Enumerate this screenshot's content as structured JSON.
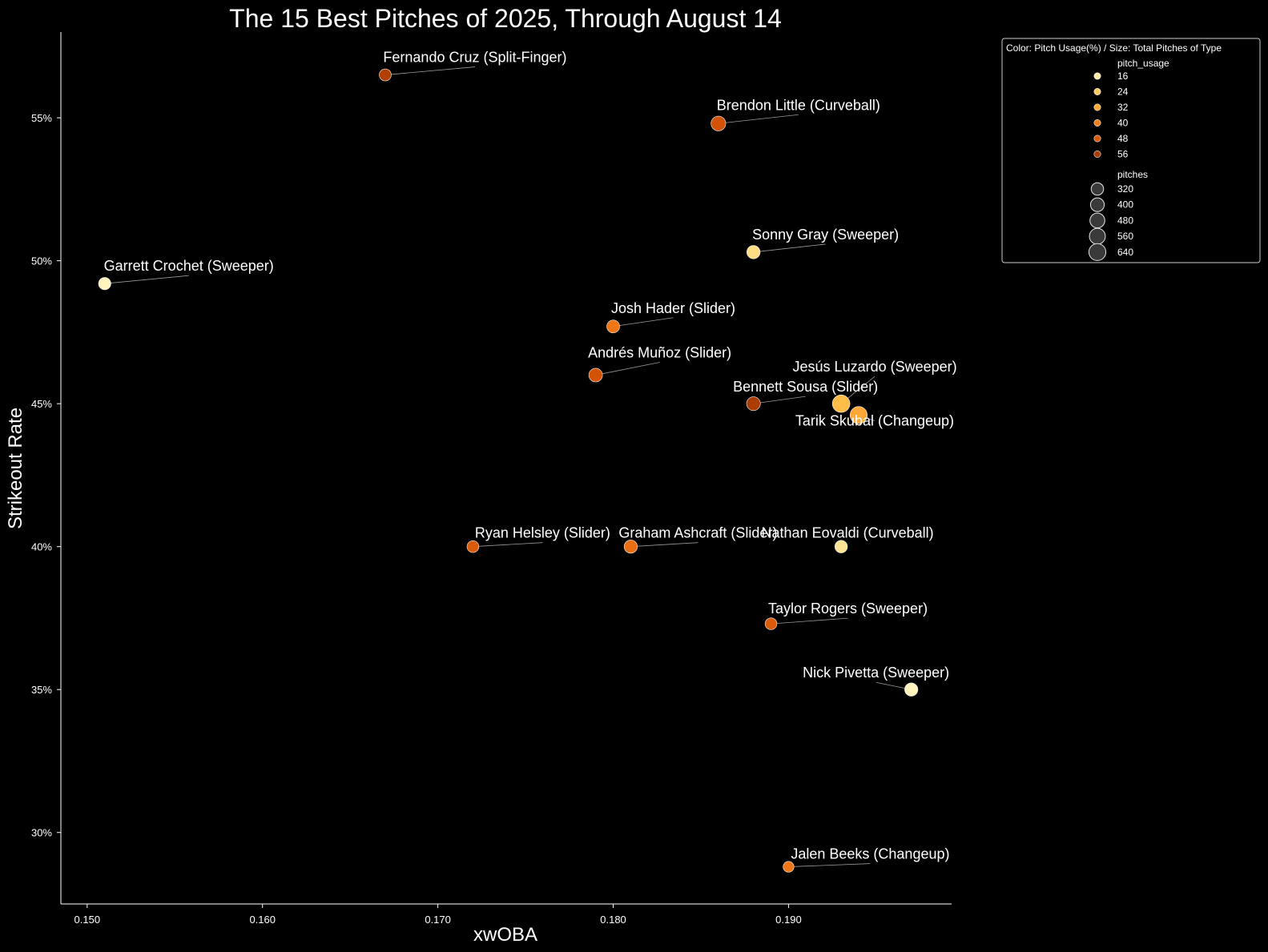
{
  "chart_data": {
    "type": "scatter",
    "title": "The 15 Best Pitches of 2025, Through August 14",
    "xlabel": "xwOBA",
    "ylabel": "Strikeout Rate",
    "xlim": [
      0.1485,
      0.1993
    ],
    "ylim": [
      27.5,
      58.0
    ],
    "xticks": [
      0.15,
      0.16,
      0.17,
      0.18,
      0.19
    ],
    "xtick_labels": [
      "0.150",
      "0.160",
      "0.170",
      "0.180",
      "0.190"
    ],
    "yticks": [
      30,
      35,
      40,
      45,
      50,
      55
    ],
    "ytick_labels": [
      "30%",
      "35%",
      "40%",
      "45%",
      "50%",
      "55%"
    ],
    "grid": false,
    "points": [
      {
        "label": "Fernando Cruz (Split-Finger)",
        "x": 0.167,
        "y": 56.5,
        "pitch_usage": 55,
        "pitches": 300
      },
      {
        "label": "Brendon Little (Curveball)",
        "x": 0.186,
        "y": 54.8,
        "pitch_usage": 50,
        "pitches": 470
      },
      {
        "label": "Sonny Gray (Sweeper)",
        "x": 0.188,
        "y": 50.3,
        "pitch_usage": 20,
        "pitches": 380
      },
      {
        "label": "Garrett Crochet (Sweeper)",
        "x": 0.151,
        "y": 49.2,
        "pitch_usage": 14,
        "pitches": 320
      },
      {
        "label": "Josh Hader (Slider)",
        "x": 0.18,
        "y": 47.7,
        "pitch_usage": 42,
        "pitches": 350
      },
      {
        "label": "Andrés Muñoz (Slider)",
        "x": 0.179,
        "y": 46.0,
        "pitch_usage": 50,
        "pitches": 400
      },
      {
        "label": "Jesús Luzardo (Sweeper)",
        "x": 0.193,
        "y": 45.0,
        "pitch_usage": 28,
        "pitches": 690
      },
      {
        "label": "Bennett Sousa (Slider)",
        "x": 0.188,
        "y": 45.0,
        "pitch_usage": 56,
        "pitches": 410
      },
      {
        "label": "Tarik Skubal (Changeup)",
        "x": 0.194,
        "y": 44.6,
        "pitch_usage": 32,
        "pitches": 660
      },
      {
        "label": "Ryan Helsley (Slider)",
        "x": 0.172,
        "y": 40.0,
        "pitch_usage": 48,
        "pitches": 290
      },
      {
        "label": "Graham Ashcraft (Slider)",
        "x": 0.181,
        "y": 40.0,
        "pitch_usage": 44,
        "pitches": 370
      },
      {
        "label": "Nathan Eovaldi (Curveball)",
        "x": 0.193,
        "y": 40.0,
        "pitch_usage": 18,
        "pitches": 330
      },
      {
        "label": "Taylor Rogers (Sweeper)",
        "x": 0.189,
        "y": 37.3,
        "pitch_usage": 48,
        "pitches": 290
      },
      {
        "label": "Nick Pivetta (Sweeper)",
        "x": 0.197,
        "y": 35.0,
        "pitch_usage": 14,
        "pitches": 370
      },
      {
        "label": "Jalen Beeks (Changeup)",
        "x": 0.19,
        "y": 28.8,
        "pitch_usage": 42,
        "pitches": 240
      }
    ],
    "legend": {
      "placement": "outside-top-right",
      "title": "Color: Pitch Usage(%) / Size: Total Pitches of Type",
      "color_heading": "pitch_usage",
      "color_items": [
        {
          "label": "16",
          "value": 16
        },
        {
          "label": "24",
          "value": 24
        },
        {
          "label": "32",
          "value": 32
        },
        {
          "label": "40",
          "value": 40
        },
        {
          "label": "48",
          "value": 48
        },
        {
          "label": "56",
          "value": 56
        }
      ],
      "size_heading": "pitches",
      "size_items": [
        {
          "label": "320",
          "value": 320
        },
        {
          "label": "400",
          "value": 400
        },
        {
          "label": "480",
          "value": 480
        },
        {
          "label": "560",
          "value": 560
        },
        {
          "label": "640",
          "value": 640
        }
      ]
    },
    "colormap": [
      "#ffffe5",
      "#fee391",
      "#fec44f",
      "#fe9929",
      "#ec7014",
      "#cc4c02",
      "#8c2d04"
    ]
  }
}
